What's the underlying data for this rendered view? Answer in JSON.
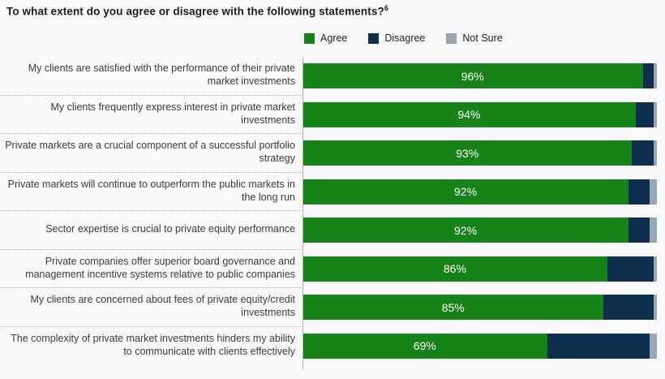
{
  "title": {
    "text": "To what extent do you agree or disagree with the following statements?",
    "footnote_sup": "6"
  },
  "colors": {
    "agree": "#178217",
    "disagree": "#0f2d4d",
    "not_sure": "#97a6b2",
    "background": "#f8f9fa"
  },
  "legend": [
    {
      "label": "Agree",
      "color": "#178217"
    },
    {
      "label": "Disagree",
      "color": "#0f2d4d"
    },
    {
      "label": "Not Sure",
      "color": "#97a6b2"
    }
  ],
  "chart_data": {
    "type": "bar",
    "orientation": "horizontal",
    "stacked": true,
    "xlim": [
      0,
      100
    ],
    "legend_position": "top",
    "grid": false,
    "categories": [
      "My clients are satisfied with the performance of their private market investments",
      "My clients frequently express interest in private market investments",
      "Private markets are a crucial component of a successful portfolio strategy",
      "Private markets will continue to outperform the public markets in the long run",
      "Sector expertise is crucial to private equity performance",
      "Private companies offer superior board governance and management incentive systems relative to public companies",
      "My clients are concerned about fees of private equity/credit investments",
      "The complexity of private market investments hinders my ability to communicate with clients effectively"
    ],
    "series": [
      {
        "name": "Agree",
        "color": "#178217",
        "values": [
          96,
          94,
          93,
          92,
          92,
          86,
          85,
          69
        ]
      },
      {
        "name": "Disagree",
        "color": "#0f2d4d",
        "values": [
          3,
          5,
          6,
          6,
          6,
          13,
          14,
          29
        ]
      },
      {
        "name": "Not Sure",
        "color": "#97a6b2",
        "values": [
          1,
          1,
          1,
          2,
          2,
          1,
          1,
          2
        ]
      }
    ],
    "value_labels": [
      "96%",
      "94%",
      "93%",
      "92%",
      "92%",
      "86%",
      "85%",
      "69%"
    ]
  }
}
